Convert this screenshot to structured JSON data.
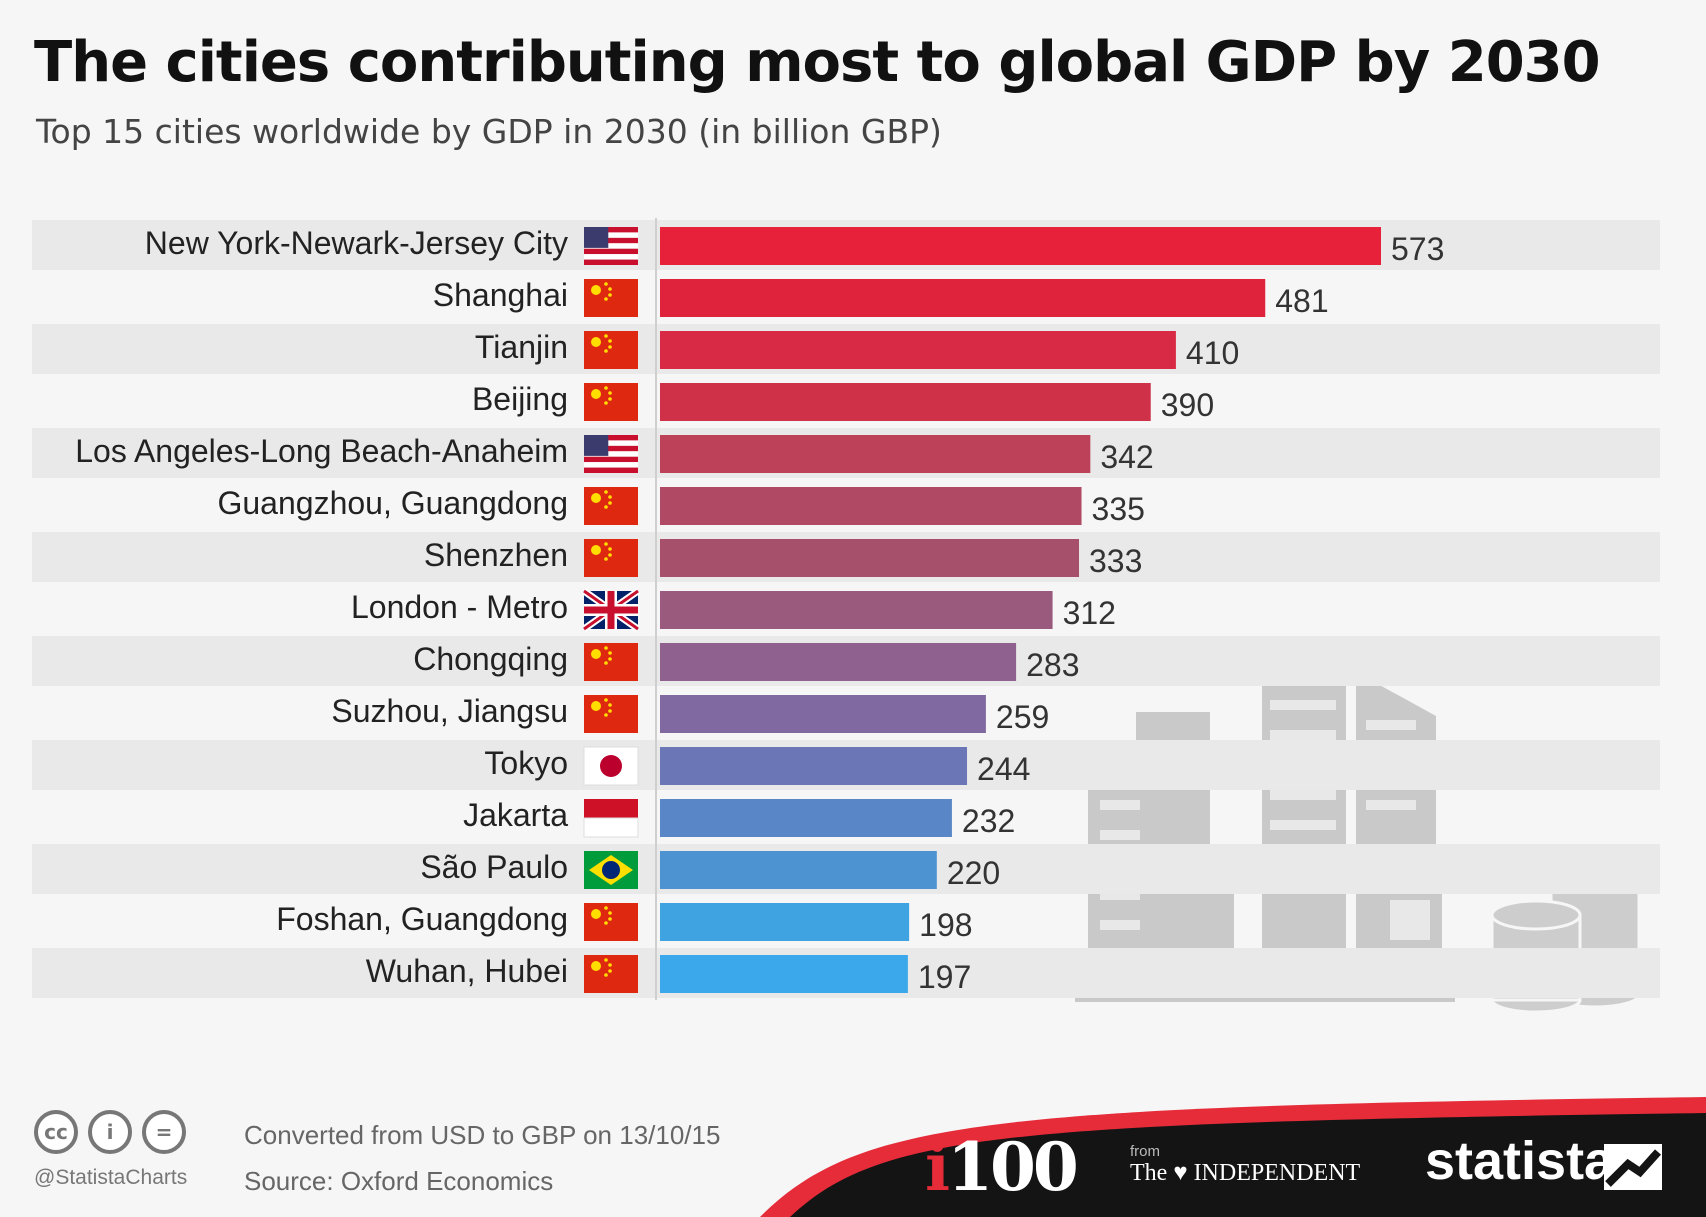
{
  "title": "The cities contributing most to global GDP by 2030",
  "subtitle": "Top 15 cities worldwide by GDP in 2030 (in billion GBP)",
  "chart_data": {
    "type": "bar",
    "orientation": "horizontal",
    "categories": [
      "New York-Newark-Jersey City",
      "Shanghai",
      "Tianjin",
      "Beijing",
      "Los Angeles-Long Beach-Anaheim",
      "Guangzhou, Guangdong",
      "Shenzhen",
      "London - Metro",
      "Chongqing",
      "Suzhou, Jiangsu",
      "Tokyo",
      "Jakarta",
      "São Paulo",
      "Foshan, Guangdong",
      "Wuhan, Hubei"
    ],
    "values": [
      573,
      481,
      410,
      390,
      342,
      335,
      333,
      312,
      283,
      259,
      244,
      232,
      220,
      198,
      197
    ],
    "flags": [
      "us-flag-icon",
      "china-flag-icon",
      "china-flag-icon",
      "china-flag-icon",
      "us-flag-icon",
      "china-flag-icon",
      "china-flag-icon",
      "uk-flag-icon",
      "china-flag-icon",
      "china-flag-icon",
      "japan-flag-icon",
      "indonesia-flag-icon",
      "brazil-flag-icon",
      "china-flag-icon",
      "china-flag-icon"
    ],
    "bar_colors": [
      "#e8213a",
      "#e0233c",
      "#d82a44",
      "#ce3148",
      "#bd4159",
      "#b04a64",
      "#a6506c",
      "#9a5a7d",
      "#8f618e",
      "#7f69a0",
      "#6a76b6",
      "#5986c6",
      "#4d93d2",
      "#3fa3e2",
      "#3aa8eb"
    ],
    "xlim": [
      0,
      600
    ],
    "grid": false,
    "legend": "none"
  },
  "footer": {
    "handle": "@StatistaCharts",
    "note": "Converted from USD to GBP on 13/10/15",
    "source": "Source: Oxford Economics"
  },
  "brands": {
    "i100_i": "i",
    "i100_num": "100",
    "from": "from",
    "independent": "The ♥ INDEPENDENT",
    "statista": "statista"
  },
  "colors": {
    "banner": "#141414",
    "banner_accent": "#e62b39",
    "row_stripe": "#e9e9e9"
  }
}
